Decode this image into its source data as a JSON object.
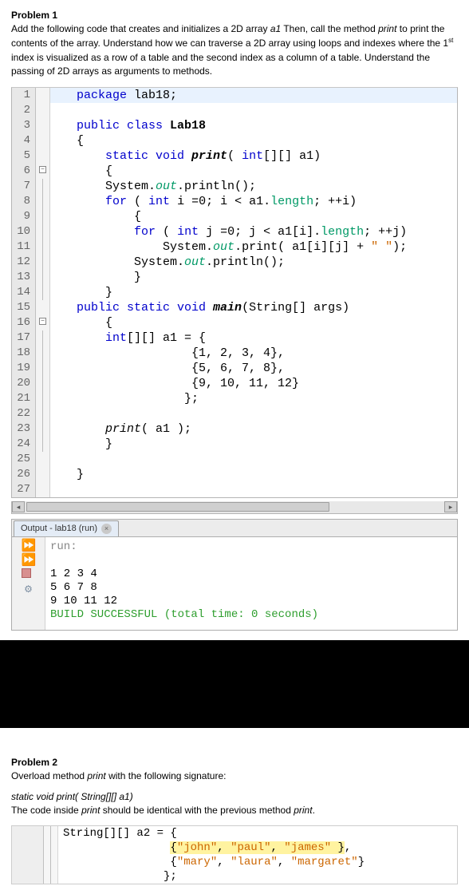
{
  "problem1": {
    "title": "Problem 1",
    "text_parts": {
      "p1a": "Add the following code that creates and initializes a 2D array ",
      "p1b": "a1",
      "p1c": " Then, call the method ",
      "p1d": "print",
      "p1e": " to print the contents of the array. Understand how we can traverse a 2D array using loops and indexes where the 1",
      "p1f": "st",
      "p1g": " index is visualized as a row of a table and the second index as a column of a table. Understand the passing of 2D arrays as arguments to methods."
    }
  },
  "code_lines": [
    {
      "n": "1",
      "fold": "",
      "cls": "highlight-row",
      "tokens": [
        {
          "t": "   ",
          "c": ""
        },
        {
          "t": "package",
          "c": "kw"
        },
        {
          "t": " lab18;",
          "c": ""
        }
      ]
    },
    {
      "n": "2",
      "fold": "",
      "tokens": []
    },
    {
      "n": "3",
      "fold": "",
      "tokens": [
        {
          "t": "   ",
          "c": ""
        },
        {
          "t": "public class ",
          "c": "kw"
        },
        {
          "t": "Lab18",
          "c": "cls"
        }
      ]
    },
    {
      "n": "4",
      "fold": "",
      "tokens": [
        {
          "t": "   {",
          "c": ""
        }
      ]
    },
    {
      "n": "5",
      "fold": "",
      "tokens": [
        {
          "t": "       ",
          "c": ""
        },
        {
          "t": "static void ",
          "c": "kw"
        },
        {
          "t": "print",
          "c": "method-def"
        },
        {
          "t": "( ",
          "c": ""
        },
        {
          "t": "int",
          "c": "kw"
        },
        {
          "t": "[][] a1)",
          "c": ""
        }
      ]
    },
    {
      "n": "6",
      "fold": "box",
      "tokens": [
        {
          "t": "       {",
          "c": ""
        }
      ]
    },
    {
      "n": "7",
      "fold": "line",
      "tokens": [
        {
          "t": "       System.",
          "c": ""
        },
        {
          "t": "out",
          "c": "field"
        },
        {
          "t": ".println();",
          "c": ""
        }
      ]
    },
    {
      "n": "8",
      "fold": "line",
      "tokens": [
        {
          "t": "       ",
          "c": ""
        },
        {
          "t": "for",
          "c": "kw"
        },
        {
          "t": " ( ",
          "c": ""
        },
        {
          "t": "int",
          "c": "kw"
        },
        {
          "t": " i =0; i < a1.",
          "c": ""
        },
        {
          "t": "length",
          "c": "ident"
        },
        {
          "t": "; ++i)",
          "c": ""
        }
      ]
    },
    {
      "n": "9",
      "fold": "line",
      "tokens": [
        {
          "t": "           {",
          "c": ""
        }
      ]
    },
    {
      "n": "10",
      "fold": "line",
      "tokens": [
        {
          "t": "           ",
          "c": ""
        },
        {
          "t": "for",
          "c": "kw"
        },
        {
          "t": " ( ",
          "c": ""
        },
        {
          "t": "int",
          "c": "kw"
        },
        {
          "t": " j =0; j < a1[i].",
          "c": ""
        },
        {
          "t": "length",
          "c": "ident"
        },
        {
          "t": "; ++j)",
          "c": ""
        }
      ]
    },
    {
      "n": "11",
      "fold": "line",
      "tokens": [
        {
          "t": "               System.",
          "c": ""
        },
        {
          "t": "out",
          "c": "field"
        },
        {
          "t": ".print( a1[i][j] + ",
          "c": ""
        },
        {
          "t": "\" \"",
          "c": "str"
        },
        {
          "t": ");",
          "c": ""
        }
      ]
    },
    {
      "n": "12",
      "fold": "line",
      "tokens": [
        {
          "t": "           System.",
          "c": ""
        },
        {
          "t": "out",
          "c": "field"
        },
        {
          "t": ".println();",
          "c": ""
        }
      ]
    },
    {
      "n": "13",
      "fold": "line",
      "tokens": [
        {
          "t": "           }",
          "c": ""
        }
      ]
    },
    {
      "n": "14",
      "fold": "end",
      "tokens": [
        {
          "t": "       }",
          "c": ""
        }
      ]
    },
    {
      "n": "15",
      "fold": "",
      "tokens": [
        {
          "t": "   ",
          "c": ""
        },
        {
          "t": "public static void ",
          "c": "kw"
        },
        {
          "t": "main",
          "c": "method-def"
        },
        {
          "t": "(String[] args)",
          "c": ""
        }
      ]
    },
    {
      "n": "16",
      "fold": "box",
      "tokens": [
        {
          "t": "       {",
          "c": ""
        }
      ]
    },
    {
      "n": "17",
      "fold": "line",
      "tokens": [
        {
          "t": "       ",
          "c": ""
        },
        {
          "t": "int",
          "c": "kw"
        },
        {
          "t": "[][] a1 = {",
          "c": ""
        }
      ]
    },
    {
      "n": "18",
      "fold": "line",
      "tokens": [
        {
          "t": "                   {1, 2, 3, 4},",
          "c": ""
        }
      ]
    },
    {
      "n": "19",
      "fold": "line",
      "tokens": [
        {
          "t": "                   {5, 6, 7, 8},",
          "c": ""
        }
      ]
    },
    {
      "n": "20",
      "fold": "line",
      "tokens": [
        {
          "t": "                   {9, 10, 11, 12}",
          "c": ""
        }
      ]
    },
    {
      "n": "21",
      "fold": "line",
      "tokens": [
        {
          "t": "                  };",
          "c": ""
        }
      ]
    },
    {
      "n": "22",
      "fold": "line",
      "tokens": []
    },
    {
      "n": "23",
      "fold": "line",
      "tokens": [
        {
          "t": "       ",
          "c": ""
        },
        {
          "t": "print",
          "c": "meth"
        },
        {
          "t": "( a1 );",
          "c": ""
        }
      ]
    },
    {
      "n": "24",
      "fold": "end",
      "tokens": [
        {
          "t": "       }",
          "c": ""
        }
      ]
    },
    {
      "n": "25",
      "fold": "",
      "tokens": []
    },
    {
      "n": "26",
      "fold": "",
      "tokens": [
        {
          "t": "   }",
          "c": ""
        }
      ]
    },
    {
      "n": "27",
      "fold": "",
      "tokens": []
    }
  ],
  "output": {
    "tab_label": "Output - lab18 (run)",
    "run_label": "run:",
    "line1": "1 2 3 4 ",
    "line2": "5 6 7 8 ",
    "line3": "9 10 11 12 ",
    "success": "BUILD SUCCESSFUL (total time: 0 seconds)"
  },
  "problem2": {
    "title": "Problem 2",
    "text1a": "Overload method ",
    "text1b": "print",
    "text1c": " with the following signature:",
    "sig": "static void print( String[][] a1)",
    "text2a": "The code inside ",
    "text2b": "print",
    "text2c": " should be identical with the previous method ",
    "text2d": "print",
    "text2e": "."
  },
  "snippet_lines": [
    {
      "tokens": [
        {
          "t": "String[][] a2 = {",
          "c": ""
        }
      ]
    },
    {
      "tokens": [
        {
          "t": "                ",
          "c": ""
        },
        {
          "t": "{",
          "c": "",
          "hl": true
        },
        {
          "t": "\"john\"",
          "c": "str",
          "hl": true
        },
        {
          "t": ", ",
          "c": "",
          "hl": true
        },
        {
          "t": "\"paul\"",
          "c": "str",
          "hl": true
        },
        {
          "t": ", ",
          "c": "",
          "hl": true
        },
        {
          "t": "\"james\"",
          "c": "str",
          "hl": true
        },
        {
          "t": " }",
          "c": "",
          "hl": true
        },
        {
          "t": ",",
          "c": ""
        }
      ]
    },
    {
      "tokens": [
        {
          "t": "                {",
          "c": ""
        },
        {
          "t": "\"mary\"",
          "c": "str"
        },
        {
          "t": ", ",
          "c": ""
        },
        {
          "t": "\"laura\"",
          "c": "str"
        },
        {
          "t": ", ",
          "c": ""
        },
        {
          "t": "\"margaret\"",
          "c": "str"
        },
        {
          "t": "}",
          "c": ""
        }
      ]
    },
    {
      "tokens": [
        {
          "t": "               };",
          "c": ""
        }
      ]
    }
  ]
}
